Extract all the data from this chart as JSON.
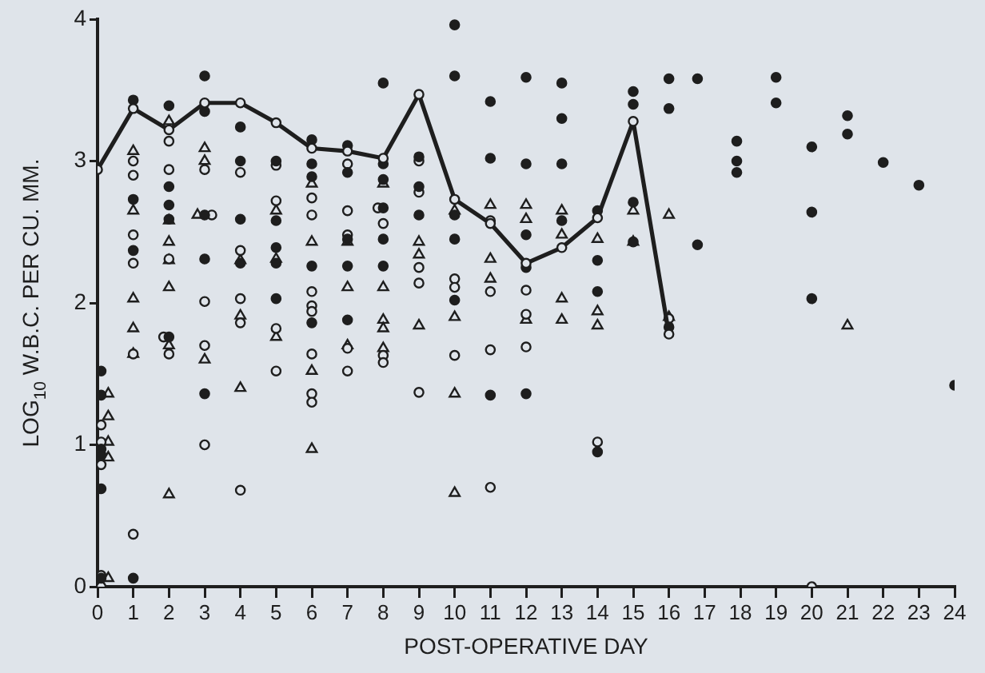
{
  "chart_data": {
    "type": "scatter",
    "xlabel": "POST-OPERATIVE DAY",
    "ylabel": "LOG$_{10}$ W.B.C. PER CU. MM.",
    "xlim": [
      0,
      24
    ],
    "xticks": [
      0,
      1,
      2,
      3,
      4,
      5,
      6,
      7,
      8,
      9,
      10,
      11,
      12,
      13,
      14,
      15,
      16,
      17,
      18,
      19,
      20,
      21,
      22,
      23,
      24
    ],
    "ylim": [
      0,
      4
    ],
    "yticks": [
      0,
      1,
      2,
      3,
      4
    ],
    "grid": false,
    "legend": false,
    "series": [
      {
        "type": "line",
        "color": "#1e1e1e",
        "marker": "circle",
        "line_style": "solid",
        "x": [
          0,
          1,
          2,
          3,
          4,
          5,
          6,
          7,
          8,
          9,
          10,
          11,
          12,
          13,
          14,
          15,
          16
        ],
        "values": [
          2.94,
          3.37,
          3.22,
          3.41,
          3.41,
          3.27,
          3.09,
          3.07,
          3.02,
          3.47,
          2.73,
          2.56,
          2.28,
          2.39,
          2.6,
          3.28,
          1.78
        ]
      },
      {
        "type": "scatter",
        "color": "#1e1e1e",
        "marker": "circle",
        "x": [
          0.1,
          0.1,
          0.1,
          0.1,
          0.1,
          0.1,
          1,
          1,
          1,
          1,
          2,
          2,
          2,
          2,
          2,
          3,
          3,
          3,
          3,
          3,
          4,
          4,
          4,
          4,
          5,
          5,
          5,
          5,
          5,
          6,
          6,
          6,
          6,
          6,
          7,
          7,
          7,
          7,
          7,
          8,
          8,
          8,
          8,
          8,
          8,
          9,
          9,
          9,
          10,
          10,
          10,
          10,
          10,
          11,
          11,
          11,
          12,
          12,
          12,
          12,
          12,
          13,
          13,
          13,
          13,
          14,
          14,
          14,
          14,
          15,
          15,
          15,
          15,
          16,
          16,
          16,
          16.8,
          16.8,
          17.9,
          17.9,
          17.9,
          19,
          19,
          20,
          20,
          20,
          21,
          21,
          22,
          23,
          24
        ],
        "values": [
          1.52,
          1.35,
          0.97,
          0.93,
          0.69,
          0.06,
          3.43,
          2.73,
          2.37,
          0.06,
          3.39,
          2.82,
          2.69,
          2.59,
          1.76,
          3.6,
          3.35,
          2.62,
          2.31,
          1.36,
          3.24,
          3.0,
          2.59,
          2.28,
          3.0,
          2.58,
          2.39,
          2.28,
          2.03,
          3.15,
          2.98,
          2.89,
          2.26,
          1.86,
          3.11,
          2.92,
          2.45,
          2.26,
          1.88,
          3.55,
          2.98,
          2.87,
          2.67,
          2.45,
          2.26,
          3.03,
          2.82,
          2.62,
          3.96,
          3.6,
          2.62,
          2.45,
          2.02,
          3.42,
          3.02,
          1.35,
          3.59,
          2.98,
          2.48,
          2.25,
          1.36,
          3.55,
          3.3,
          2.98,
          2.58,
          2.65,
          2.3,
          2.08,
          0.95,
          3.49,
          3.4,
          2.71,
          2.43,
          3.58,
          3.37,
          1.83,
          3.58,
          2.41,
          3.14,
          3.0,
          2.92,
          3.59,
          3.41,
          3.1,
          2.64,
          2.03,
          3.32,
          3.19,
          2.99,
          2.83,
          1.42
        ]
      },
      {
        "type": "scatter",
        "color": "#dfe4ea",
        "marker": "circle",
        "x": [
          0.1,
          0.1,
          0.1,
          0.1,
          0.1,
          1,
          1,
          1,
          1,
          1,
          1,
          2,
          2,
          2,
          1.85,
          2,
          3,
          3.2,
          3,
          3,
          3,
          4,
          4,
          4,
          4,
          4,
          5,
          5,
          5,
          5,
          6,
          6,
          6,
          6,
          6,
          6,
          6,
          6,
          7,
          7,
          7,
          7,
          7,
          7.85,
          8,
          8,
          8,
          9,
          9,
          9,
          9,
          9,
          10,
          10,
          10,
          11,
          11,
          11,
          11,
          12,
          12,
          12,
          14,
          16,
          20
        ],
        "values": [
          1.14,
          1.02,
          0.86,
          0.08,
          0,
          3.0,
          2.9,
          2.48,
          2.28,
          1.64,
          0.37,
          3.14,
          2.94,
          2.31,
          1.76,
          1.64,
          2.94,
          2.62,
          2.01,
          1.7,
          1.0,
          2.92,
          2.37,
          2.03,
          1.86,
          0.68,
          2.97,
          2.72,
          1.82,
          1.52,
          2.74,
          2.62,
          2.08,
          1.98,
          1.94,
          1.64,
          1.36,
          1.3,
          2.98,
          2.65,
          2.48,
          1.68,
          1.52,
          2.67,
          2.56,
          1.63,
          1.58,
          3.0,
          2.78,
          2.25,
          2.14,
          1.37,
          2.17,
          2.11,
          1.63,
          2.58,
          2.08,
          1.67,
          0.7,
          2.09,
          1.92,
          1.69,
          1.02,
          1.89,
          0
        ]
      },
      {
        "type": "scatter",
        "color": "#dfe4ea",
        "marker": "triangle",
        "x": [
          0.3,
          0.3,
          0.3,
          0.3,
          0.3,
          1,
          1,
          1,
          1,
          1,
          2,
          2,
          2,
          2,
          2,
          2,
          2,
          3,
          3,
          2.8,
          3,
          4,
          4,
          4,
          5,
          5,
          5,
          6,
          6,
          6,
          6,
          7,
          7,
          7,
          8,
          8,
          8,
          8,
          8,
          9,
          9,
          9,
          10,
          10,
          10,
          10,
          11,
          11,
          11,
          12,
          12,
          12,
          13,
          13,
          13,
          13,
          14,
          14,
          14,
          15,
          15,
          16,
          16,
          21
        ],
        "values": [
          1.36,
          1.2,
          1.02,
          0.91,
          0.06,
          3.07,
          2.65,
          2.03,
          1.82,
          1.64,
          3.28,
          2.58,
          2.43,
          2.3,
          2.11,
          1.7,
          0.65,
          3.09,
          3.0,
          2.62,
          1.6,
          2.3,
          1.91,
          1.4,
          2.65,
          2.31,
          1.76,
          2.84,
          2.43,
          1.52,
          0.97,
          2.43,
          2.11,
          1.7,
          2.84,
          2.11,
          1.88,
          1.82,
          1.68,
          2.43,
          2.34,
          1.84,
          2.65,
          1.9,
          1.36,
          0.66,
          2.69,
          2.31,
          2.17,
          2.69,
          2.59,
          1.88,
          2.65,
          2.48,
          2.03,
          1.88,
          2.45,
          1.94,
          1.84,
          2.65,
          2.43,
          2.62,
          1.9,
          1.84
        ]
      }
    ]
  }
}
